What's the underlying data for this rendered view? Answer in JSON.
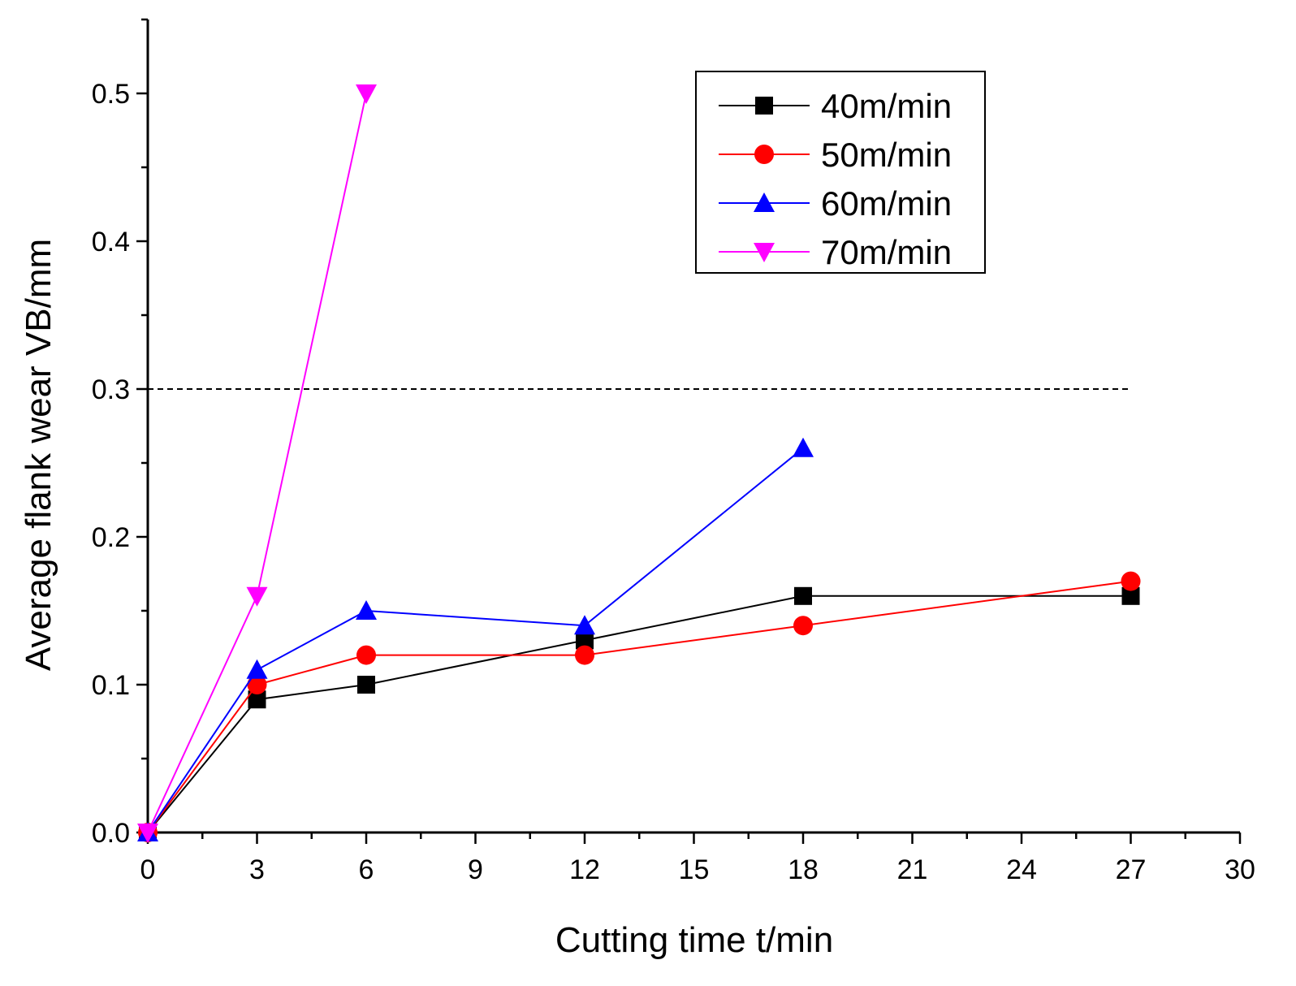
{
  "chart_data": {
    "type": "line",
    "title": "",
    "xlabel": "Cutting time t/min",
    "ylabel": "Average flank wear VB/mm",
    "xlim": [
      0,
      30
    ],
    "ylim": [
      0,
      0.55
    ],
    "x_ticks": [
      0,
      3,
      6,
      9,
      12,
      15,
      18,
      21,
      24,
      27,
      30
    ],
    "y_ticks": [
      0.0,
      0.1,
      0.2,
      0.3,
      0.4,
      0.5
    ],
    "x_tick_labels": [
      "0",
      "3",
      "6",
      "9",
      "12",
      "15",
      "18",
      "21",
      "24",
      "27",
      "30"
    ],
    "y_tick_labels": [
      "0.0",
      "0.1",
      "0.2",
      "0.3",
      "0.4",
      "0.5"
    ],
    "reference_line": {
      "y": 0.3,
      "x_range": [
        0,
        27
      ],
      "style": "dashed",
      "color": "#000000"
    },
    "legend_position": "top-right",
    "series": [
      {
        "name": "40m/min",
        "color": "#000000",
        "marker": "square",
        "x": [
          0,
          3,
          6,
          12,
          18,
          27
        ],
        "y": [
          0,
          0.09,
          0.1,
          0.13,
          0.16,
          0.16
        ]
      },
      {
        "name": "50m/min",
        "color": "#ff0000",
        "marker": "circle",
        "x": [
          0,
          3,
          6,
          12,
          18,
          27
        ],
        "y": [
          0,
          0.1,
          0.12,
          0.12,
          0.14,
          0.17
        ]
      },
      {
        "name": "60m/min",
        "color": "#0000ff",
        "marker": "triangle-up",
        "x": [
          0,
          3,
          6,
          12,
          18
        ],
        "y": [
          0,
          0.11,
          0.15,
          0.14,
          0.26
        ]
      },
      {
        "name": "70m/min",
        "color": "#ff00ff",
        "marker": "triangle-down",
        "x": [
          0,
          3,
          6
        ],
        "y": [
          0,
          0.16,
          0.5
        ]
      }
    ]
  }
}
